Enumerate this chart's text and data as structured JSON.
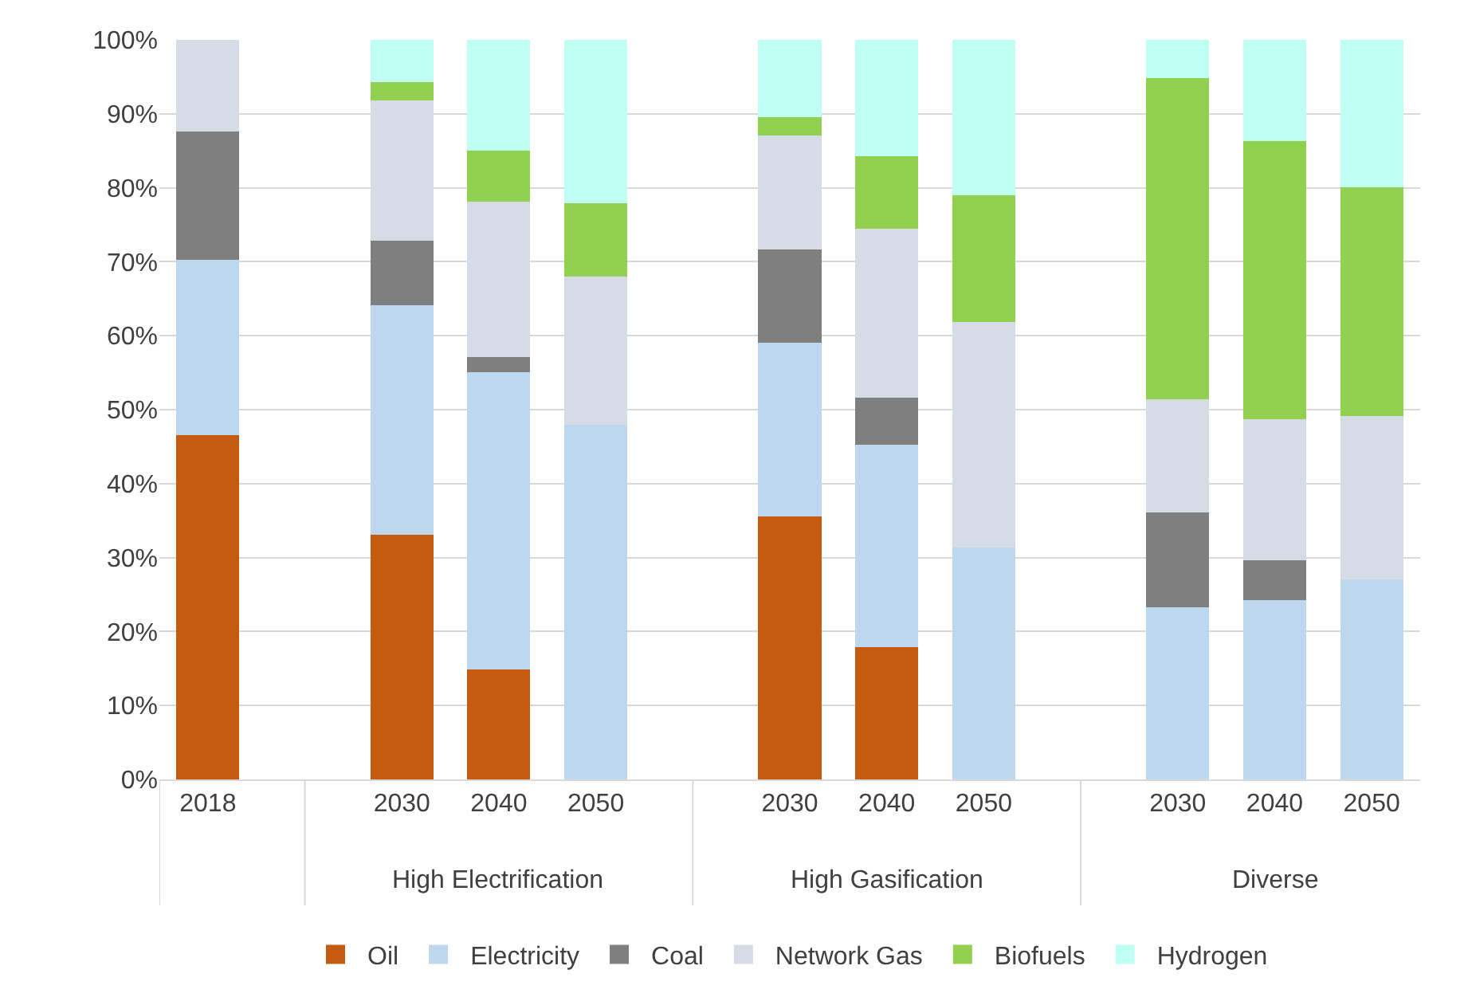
{
  "chart_data": {
    "type": "bar",
    "stacked": true,
    "categories": [
      "2018",
      null,
      "2030",
      "2040",
      "2050",
      null,
      "2030",
      "2040",
      "2050",
      null,
      "2030",
      "2040",
      "2050"
    ],
    "annotations": [
      "High Electrification",
      "High Gasification",
      "Diverse"
    ],
    "series": [
      {
        "name": "Oil",
        "color": "#c55a11",
        "values": [
          46.6,
          null,
          33.1,
          14.9,
          null,
          null,
          35.6,
          17.9,
          null,
          null,
          null,
          null,
          null
        ]
      },
      {
        "name": "Electricity",
        "color": "#bdd7ee",
        "values": [
          23.7,
          null,
          31.0,
          40.2,
          47.9,
          null,
          23.4,
          27.4,
          31.4,
          null,
          23.3,
          24.2,
          27.0
        ]
      },
      {
        "name": "Coal",
        "color": "#7f7f7f",
        "values": [
          17.3,
          null,
          8.7,
          2.0,
          null,
          null,
          12.7,
          6.3,
          null,
          null,
          12.8,
          5.4,
          null
        ]
      },
      {
        "name": "Network Gas",
        "color": "#d6dce5",
        "values": [
          12.4,
          null,
          19.0,
          21.0,
          20.1,
          null,
          15.4,
          22.9,
          30.5,
          null,
          15.3,
          19.1,
          22.1
        ]
      },
      {
        "name": "Biofuels",
        "color": "#92d050",
        "values": [
          null,
          null,
          2.5,
          6.9,
          9.9,
          null,
          2.5,
          9.8,
          17.1,
          null,
          43.4,
          37.6,
          31.0
        ]
      },
      {
        "name": "Hydrogen",
        "color": "#c0fff4",
        "values": [
          null,
          null,
          5.7,
          15.0,
          22.1,
          null,
          10.4,
          15.7,
          21.0,
          null,
          5.2,
          13.7,
          19.9
        ]
      }
    ],
    "ylim": [
      0,
      100
    ],
    "yticks": [
      {
        "value": 0,
        "label": "0%"
      },
      {
        "value": 10,
        "label": "10%"
      },
      {
        "value": 20,
        "label": "20%"
      },
      {
        "value": 30,
        "label": "30%"
      },
      {
        "value": 40,
        "label": "40%"
      },
      {
        "value": 50,
        "label": "50%"
      },
      {
        "value": 60,
        "label": "60%"
      },
      {
        "value": 70,
        "label": "70%"
      },
      {
        "value": 80,
        "label": "80%"
      },
      {
        "value": 90,
        "label": "90%"
      },
      {
        "value": 100,
        "label": "100%"
      }
    ],
    "grid": "y",
    "legend": "bottom"
  }
}
